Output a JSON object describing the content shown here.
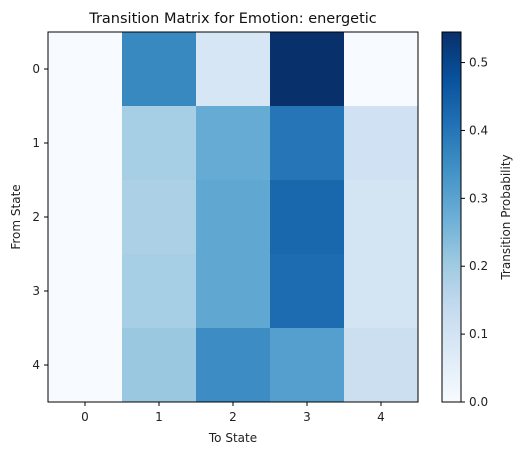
{
  "chart_data": {
    "type": "heatmap",
    "title": "Transition Matrix for Emotion: energetic",
    "xlabel": "To State",
    "ylabel": "From State",
    "colorbar_label": "Transition Probability",
    "x_categories": [
      "0",
      "1",
      "2",
      "3",
      "4"
    ],
    "y_categories": [
      "0",
      "1",
      "2",
      "3",
      "4"
    ],
    "values": [
      [
        0.0,
        0.36,
        0.09,
        0.55,
        0.0
      ],
      [
        0.0,
        0.19,
        0.28,
        0.4,
        0.11
      ],
      [
        0.0,
        0.18,
        0.29,
        0.43,
        0.1
      ],
      [
        0.0,
        0.19,
        0.29,
        0.42,
        0.1
      ],
      [
        0.0,
        0.21,
        0.35,
        0.31,
        0.12
      ]
    ],
    "color_range": [
      0.0,
      0.545
    ],
    "colorbar_ticks": [
      "0.0",
      "0.1",
      "0.2",
      "0.3",
      "0.4",
      "0.5"
    ],
    "colormap": "Blues",
    "grid": false
  }
}
